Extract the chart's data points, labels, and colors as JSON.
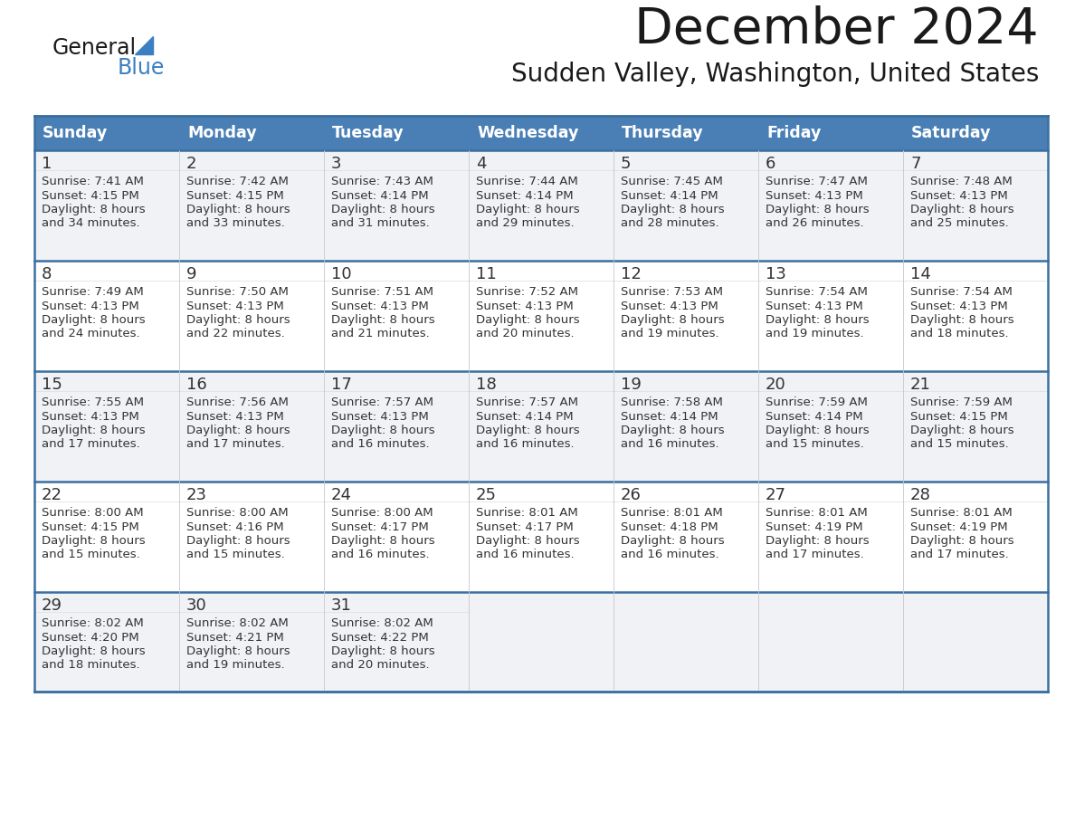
{
  "title": "December 2024",
  "subtitle": "Sudden Valley, Washington, United States",
  "header_color": "#4a7fb5",
  "header_text_color": "#ffffff",
  "row_bg_odd": "#f0f2f5",
  "row_bg_even": "#ffffff",
  "border_color": "#3a6fa0",
  "divider_color": "#cccccc",
  "text_color": "#333333",
  "days_of_week": [
    "Sunday",
    "Monday",
    "Tuesday",
    "Wednesday",
    "Thursday",
    "Friday",
    "Saturday"
  ],
  "calendar_data": [
    [
      {
        "day": "1",
        "sunrise": "7:41 AM",
        "sunset": "4:15 PM",
        "daylight2": "and 34 minutes."
      },
      {
        "day": "2",
        "sunrise": "7:42 AM",
        "sunset": "4:15 PM",
        "daylight2": "and 33 minutes."
      },
      {
        "day": "3",
        "sunrise": "7:43 AM",
        "sunset": "4:14 PM",
        "daylight2": "and 31 minutes."
      },
      {
        "day": "4",
        "sunrise": "7:44 AM",
        "sunset": "4:14 PM",
        "daylight2": "and 29 minutes."
      },
      {
        "day": "5",
        "sunrise": "7:45 AM",
        "sunset": "4:14 PM",
        "daylight2": "and 28 minutes."
      },
      {
        "day": "6",
        "sunrise": "7:47 AM",
        "sunset": "4:13 PM",
        "daylight2": "and 26 minutes."
      },
      {
        "day": "7",
        "sunrise": "7:48 AM",
        "sunset": "4:13 PM",
        "daylight2": "and 25 minutes."
      }
    ],
    [
      {
        "day": "8",
        "sunrise": "7:49 AM",
        "sunset": "4:13 PM",
        "daylight2": "and 24 minutes."
      },
      {
        "day": "9",
        "sunrise": "7:50 AM",
        "sunset": "4:13 PM",
        "daylight2": "and 22 minutes."
      },
      {
        "day": "10",
        "sunrise": "7:51 AM",
        "sunset": "4:13 PM",
        "daylight2": "and 21 minutes."
      },
      {
        "day": "11",
        "sunrise": "7:52 AM",
        "sunset": "4:13 PM",
        "daylight2": "and 20 minutes."
      },
      {
        "day": "12",
        "sunrise": "7:53 AM",
        "sunset": "4:13 PM",
        "daylight2": "and 19 minutes."
      },
      {
        "day": "13",
        "sunrise": "7:54 AM",
        "sunset": "4:13 PM",
        "daylight2": "and 19 minutes."
      },
      {
        "day": "14",
        "sunrise": "7:54 AM",
        "sunset": "4:13 PM",
        "daylight2": "and 18 minutes."
      }
    ],
    [
      {
        "day": "15",
        "sunrise": "7:55 AM",
        "sunset": "4:13 PM",
        "daylight2": "and 17 minutes."
      },
      {
        "day": "16",
        "sunrise": "7:56 AM",
        "sunset": "4:13 PM",
        "daylight2": "and 17 minutes."
      },
      {
        "day": "17",
        "sunrise": "7:57 AM",
        "sunset": "4:13 PM",
        "daylight2": "and 16 minutes."
      },
      {
        "day": "18",
        "sunrise": "7:57 AM",
        "sunset": "4:14 PM",
        "daylight2": "and 16 minutes."
      },
      {
        "day": "19",
        "sunrise": "7:58 AM",
        "sunset": "4:14 PM",
        "daylight2": "and 16 minutes."
      },
      {
        "day": "20",
        "sunrise": "7:59 AM",
        "sunset": "4:14 PM",
        "daylight2": "and 15 minutes."
      },
      {
        "day": "21",
        "sunrise": "7:59 AM",
        "sunset": "4:15 PM",
        "daylight2": "and 15 minutes."
      }
    ],
    [
      {
        "day": "22",
        "sunrise": "8:00 AM",
        "sunset": "4:15 PM",
        "daylight2": "and 15 minutes."
      },
      {
        "day": "23",
        "sunrise": "8:00 AM",
        "sunset": "4:16 PM",
        "daylight2": "and 15 minutes."
      },
      {
        "day": "24",
        "sunrise": "8:00 AM",
        "sunset": "4:17 PM",
        "daylight2": "and 16 minutes."
      },
      {
        "day": "25",
        "sunrise": "8:01 AM",
        "sunset": "4:17 PM",
        "daylight2": "and 16 minutes."
      },
      {
        "day": "26",
        "sunrise": "8:01 AM",
        "sunset": "4:18 PM",
        "daylight2": "and 16 minutes."
      },
      {
        "day": "27",
        "sunrise": "8:01 AM",
        "sunset": "4:19 PM",
        "daylight2": "and 17 minutes."
      },
      {
        "day": "28",
        "sunrise": "8:01 AM",
        "sunset": "4:19 PM",
        "daylight2": "and 17 minutes."
      }
    ],
    [
      {
        "day": "29",
        "sunrise": "8:02 AM",
        "sunset": "4:20 PM",
        "daylight2": "and 18 minutes."
      },
      {
        "day": "30",
        "sunrise": "8:02 AM",
        "sunset": "4:21 PM",
        "daylight2": "and 19 minutes."
      },
      {
        "day": "31",
        "sunrise": "8:02 AM",
        "sunset": "4:22 PM",
        "daylight2": "and 20 minutes."
      },
      null,
      null,
      null,
      null
    ]
  ]
}
